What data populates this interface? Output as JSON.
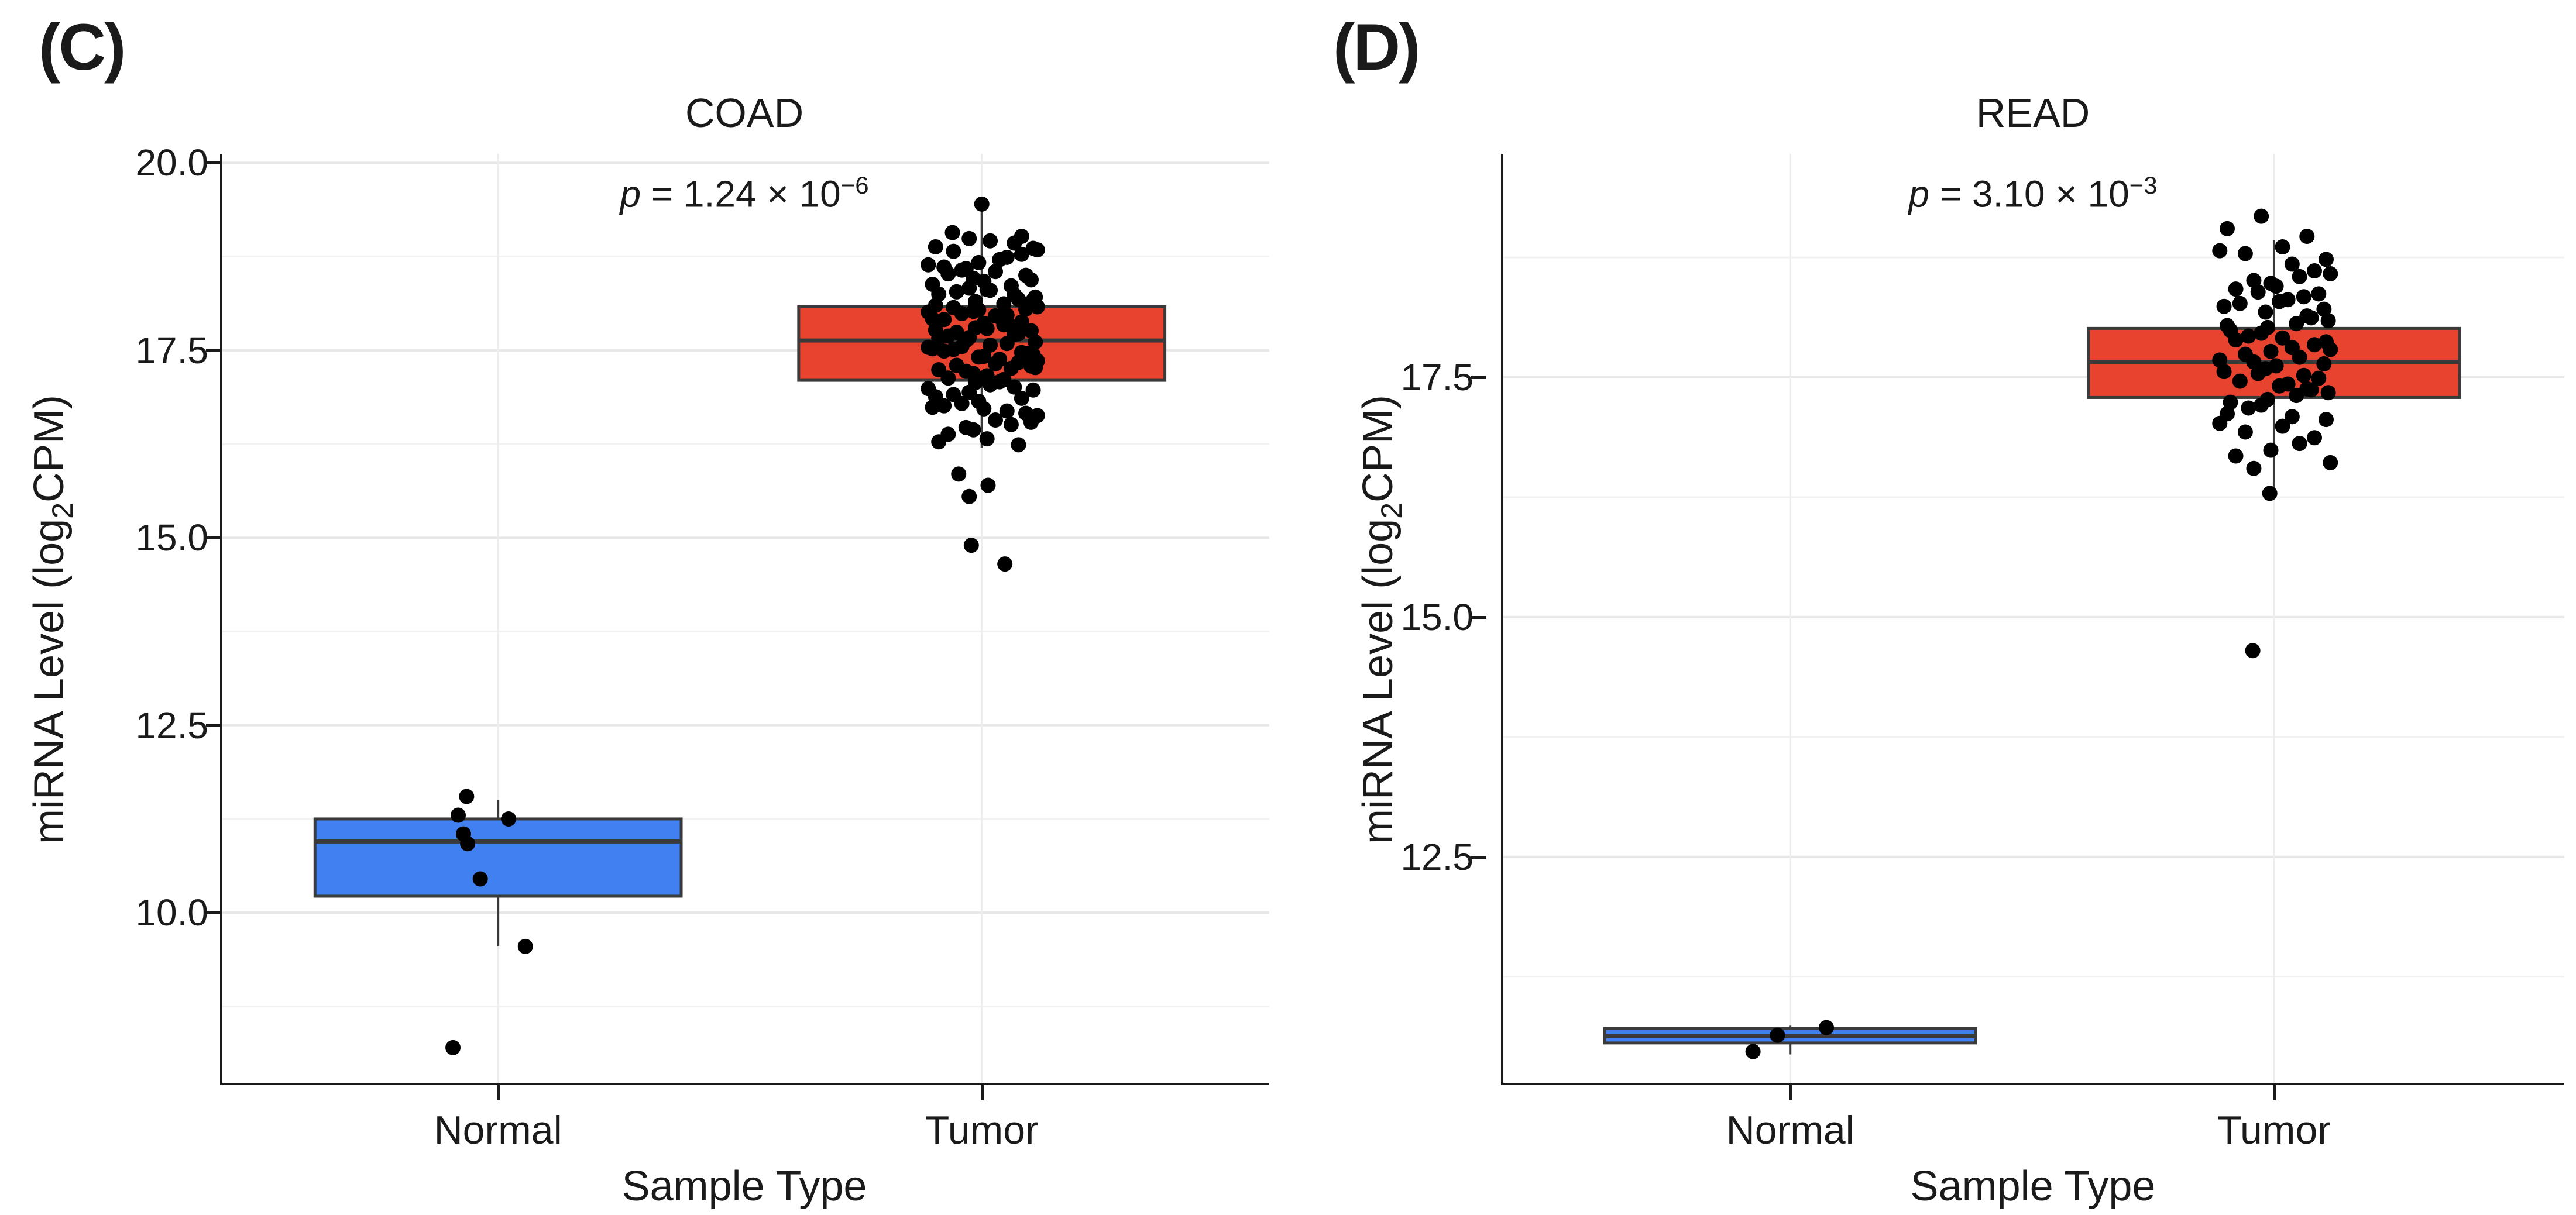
{
  "panels": [
    {
      "label": "(C)",
      "title": "COAD",
      "p_italic": "p",
      "p_body": " = 1.24 × 10",
      "p_exponent": "−6",
      "p_text": "p = 1.24 × 10⁻⁶"
    },
    {
      "label": "(D)",
      "title": "READ",
      "p_italic": "p",
      "p_body": " = 3.10 × 10",
      "p_exponent": "−3",
      "p_text": "p = 3.10 × 10⁻³"
    }
  ],
  "ylabel": {
    "pre": "miRNA Level (log",
    "sub": "2",
    "post": "CPM)",
    "text": "miRNA Level (log2CPM)"
  },
  "xlabel": "Sample Type",
  "categories": [
    "Normal",
    "Tumor"
  ],
  "colors": {
    "normal_box": "#4080F0",
    "tumor_box": "#E8432F",
    "box_border": "#3A3A3A",
    "point": "#000000",
    "axis": "#1A1A1A",
    "grid_major": "#E7E7E7",
    "grid_minor": "#F2F2F2",
    "grid_vertical": "#EDEDED"
  },
  "chart_data": [
    {
      "type": "box",
      "title": "COAD",
      "p_value_text": "p = 1.24 × 10⁻⁶",
      "xlabel": "Sample Type",
      "ylabel": "miRNA Level (log2CPM)",
      "categories": [
        "Normal",
        "Tumor"
      ],
      "ytick_labels": [
        "20.0",
        "17.5",
        "15.0",
        "12.5",
        "10.0"
      ],
      "minor_gridlines": [
        8.75,
        11.25,
        13.75,
        16.25,
        18.75
      ],
      "ylim": [
        7.7,
        20.12
      ],
      "grid": true,
      "legend": "none",
      "series": [
        {
          "category": "Normal",
          "box_color": "#4080F0",
          "box": {
            "whisker_low": 9.55,
            "q1": 10.22,
            "median": 10.95,
            "q3": 11.25,
            "whisker_high": 11.5
          },
          "points": [
            [
              -0.03,
              11.55
            ],
            [
              -0.038,
              11.3
            ],
            [
              0.01,
              11.25
            ],
            [
              -0.033,
              11.05
            ],
            [
              -0.029,
              10.92
            ],
            [
              -0.017,
              10.45
            ],
            [
              0.026,
              9.55
            ],
            [
              -0.043,
              8.2
            ]
          ]
        },
        {
          "category": "Tumor",
          "box_color": "#E8432F",
          "box": {
            "whisker_low": 16.2,
            "q1": 17.1,
            "median": 17.63,
            "q3": 18.08,
            "whisker_high": 19.4
          },
          "cloud_values": [
            18.99,
            18.93,
            18.88,
            18.96,
            18.86,
            18.82,
            18.71,
            18.64,
            18.78,
            18.67,
            18.74,
            18.61,
            18.84,
            18.57,
            18.42,
            18.5,
            18.38,
            18.55,
            18.46,
            18.36,
            18.52,
            18.44,
            18.59,
            18.31,
            18.18,
            18.25,
            18.12,
            18.28,
            18.21,
            18.15,
            18.33,
            18.24,
            18.1,
            18.3,
            18.17,
            18.07,
            17.94,
            18.01,
            17.88,
            18.04,
            17.97,
            17.91,
            18.08,
            17.99,
            17.86,
            18.05,
            17.92,
            17.96,
            18.02,
            17.82,
            17.69,
            17.76,
            17.63,
            17.79,
            17.72,
            17.66,
            17.84,
            17.74,
            17.61,
            17.8,
            17.67,
            17.71,
            17.77,
            17.57,
            17.44,
            17.51,
            17.38,
            17.54,
            17.47,
            17.41,
            17.59,
            17.49,
            17.36,
            17.55,
            17.42,
            17.46,
            17.52,
            17.32,
            17.19,
            17.26,
            17.13,
            17.29,
            17.22,
            17.16,
            17.34,
            17.24,
            17.11,
            17.3,
            17.27,
            17.07,
            16.94,
            17.01,
            16.88,
            17.04,
            16.97,
            16.91,
            17.08,
            16.99,
            16.86,
            16.82,
            16.69,
            16.76,
            16.63,
            16.79,
            16.72,
            16.66,
            16.74,
            16.57,
            16.44,
            16.51,
            16.38,
            16.54,
            16.47,
            16.32,
            16.24,
            16.28
          ],
          "cloud_jitter_cycle": [
            -0.012,
            0.031,
            -0.044,
            0.008,
            0.049,
            -0.027,
            0.017,
            -0.051,
            0.038,
            -0.003,
            0.024,
            -0.036,
            0.053,
            -0.019,
            0.002,
            0.042,
            -0.047,
            0.013,
            -0.008,
            0.028,
            -0.032,
            0.047,
            -0.015,
            0.005,
            0.035,
            -0.041,
            0.021,
            -0.024,
            0.051,
            -0.006
          ],
          "extreme_points": [
            [
              0.0,
              19.45
            ],
            [
              -0.028,
              19.07
            ],
            [
              0.038,
              19.02
            ],
            [
              -0.022,
              15.85
            ],
            [
              0.006,
              15.7
            ],
            [
              -0.012,
              15.55
            ],
            [
              -0.01,
              14.9
            ],
            [
              0.022,
              14.65
            ]
          ]
        }
      ]
    },
    {
      "type": "box",
      "title": "READ",
      "p_value_text": "p = 3.10 × 10⁻³",
      "xlabel": "Sample Type",
      "ylabel": "miRNA Level (log2CPM)",
      "categories": [
        "Normal",
        "Tumor"
      ],
      "ytick_labels": [
        "17.5",
        "15.0",
        "12.5"
      ],
      "minor_gridlines": [
        11.25,
        13.75,
        16.25,
        18.75
      ],
      "ylim": [
        10.12,
        19.83
      ],
      "grid": true,
      "legend": "none",
      "series": [
        {
          "category": "Normal",
          "box_color": "#4080F0",
          "box": {
            "whisker_low": 10.44,
            "q1": 10.56,
            "median": 10.63,
            "q3": 10.71,
            "whisker_high": 10.74
          },
          "points": [
            [
              0.034,
              10.72
            ],
            [
              -0.012,
              10.64
            ],
            [
              -0.035,
              10.47
            ]
          ]
        },
        {
          "category": "Tumor",
          "box_color": "#E8432F",
          "box": {
            "whisker_low": 16.29,
            "q1": 17.29,
            "median": 17.66,
            "q3": 18.01,
            "whisker_high": 18.93
          },
          "cloud_values": [
            19.18,
            18.97,
            19.05,
            18.86,
            18.73,
            18.79,
            18.68,
            18.82,
            18.61,
            18.48,
            18.55,
            18.42,
            18.58,
            18.51,
            18.45,
            18.37,
            18.24,
            18.31,
            18.18,
            18.34,
            18.27,
            18.21,
            18.39,
            18.29,
            18.12,
            17.99,
            18.06,
            17.93,
            18.09,
            18.02,
            17.96,
            18.14,
            18.04,
            17.91,
            17.87,
            17.74,
            17.81,
            17.68,
            17.84,
            17.77,
            17.71,
            17.89,
            17.79,
            17.66,
            17.62,
            17.49,
            17.56,
            17.43,
            17.59,
            17.52,
            17.46,
            17.64,
            17.54,
            17.41,
            17.37,
            17.24,
            17.31,
            17.18,
            17.34,
            17.27,
            17.21,
            17.38,
            17.12,
            16.99,
            17.06,
            16.93,
            17.09,
            17.02,
            16.87,
            16.74,
            16.81,
            16.68,
            16.61,
            16.55
          ],
          "cloud_jitter_cycle": [
            -0.012,
            0.031,
            -0.044,
            0.008,
            0.049,
            -0.027,
            0.017,
            -0.051,
            0.038,
            -0.003,
            0.024,
            -0.036,
            0.053,
            -0.019,
            0.002,
            0.042,
            -0.047,
            0.013,
            -0.008,
            0.028,
            -0.032,
            0.047,
            -0.015,
            0.005,
            0.035,
            -0.041,
            0.021,
            -0.024,
            0.051,
            -0.006
          ],
          "extreme_points": [
            [
              -0.004,
              16.29
            ],
            [
              -0.02,
              14.65
            ]
          ]
        }
      ]
    }
  ]
}
